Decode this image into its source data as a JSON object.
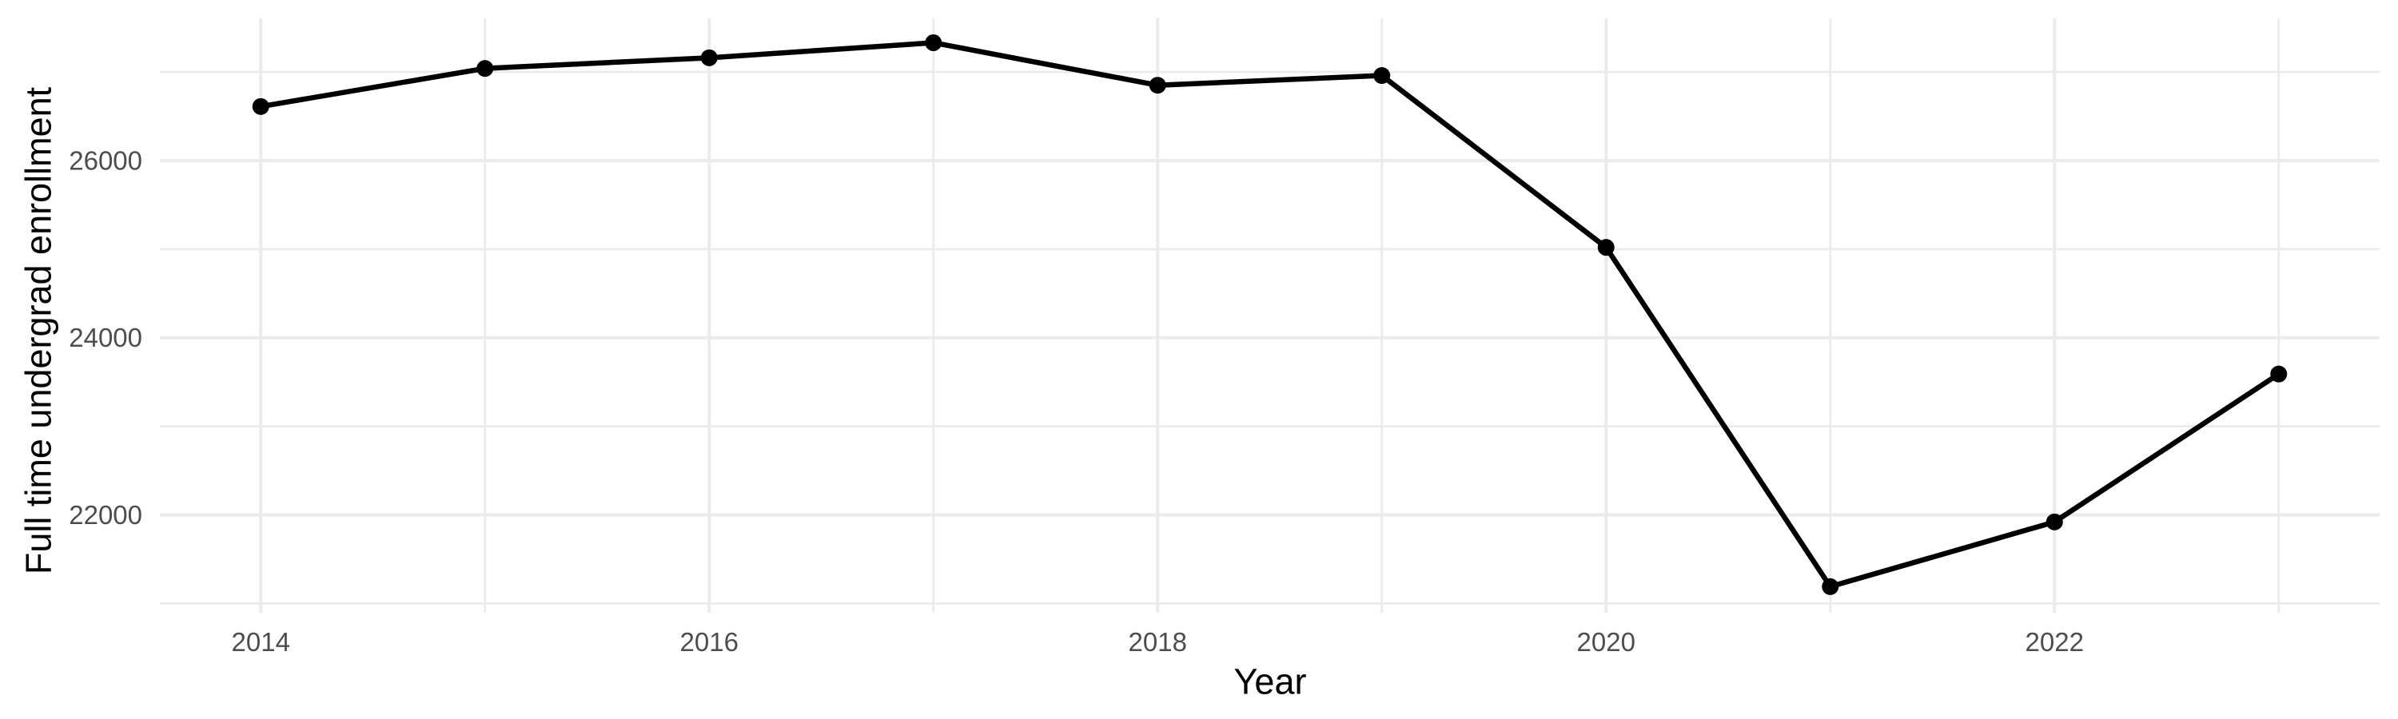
{
  "chart_data": {
    "type": "line",
    "title": "",
    "xlabel": "Year",
    "ylabel": "Full time undergrad enrollment",
    "x": [
      2014,
      2015,
      2016,
      2017,
      2018,
      2019,
      2020,
      2021,
      2022,
      2023
    ],
    "series": [
      {
        "name": "Full time undergrad enrollment",
        "values": [
          26610,
          27040,
          27160,
          27330,
          26850,
          26960,
          25020,
          21190,
          21920,
          23590
        ]
      }
    ],
    "x_tick_labels": [
      "2014",
      "2016",
      "2018",
      "2020",
      "2022"
    ],
    "x_tick_positions": [
      2014,
      2016,
      2018,
      2020,
      2022
    ],
    "x_minor_gridlines": [
      2015,
      2017,
      2019,
      2021,
      2023
    ],
    "y_tick_labels": [
      "22000",
      "24000",
      "26000"
    ],
    "y_tick_positions": [
      22000,
      24000,
      26000
    ],
    "y_minor_gridlines": [
      21000,
      23000,
      25000,
      27000
    ],
    "xlim": [
      2013.55,
      2023.45
    ],
    "ylim": [
      20895,
      27605
    ],
    "grid": true,
    "legend": false,
    "colors": {
      "line": "#000000",
      "point": "#000000",
      "grid": "#EBEBEB",
      "tick_label": "#4D4D4D",
      "axis_title": "#000000",
      "background": "#FFFFFF"
    }
  }
}
